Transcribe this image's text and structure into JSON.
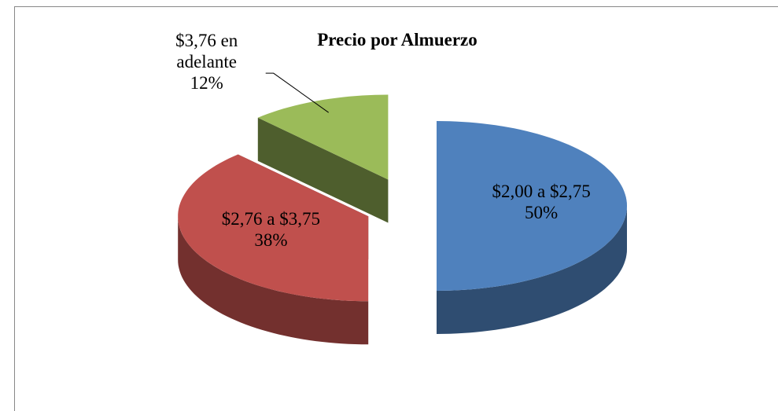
{
  "chart_data": {
    "type": "pie",
    "title": "Precio por Almuerzo",
    "categories": [
      "$2,00 a $2,75",
      "$2,76 a $3,75",
      "$3,76 en adelante"
    ],
    "values": [
      50,
      38,
      12
    ],
    "value_labels": [
      "50%",
      "38%",
      "12%"
    ],
    "colors": [
      "#4f81bd",
      "#c0504d",
      "#9bbb59"
    ]
  }
}
